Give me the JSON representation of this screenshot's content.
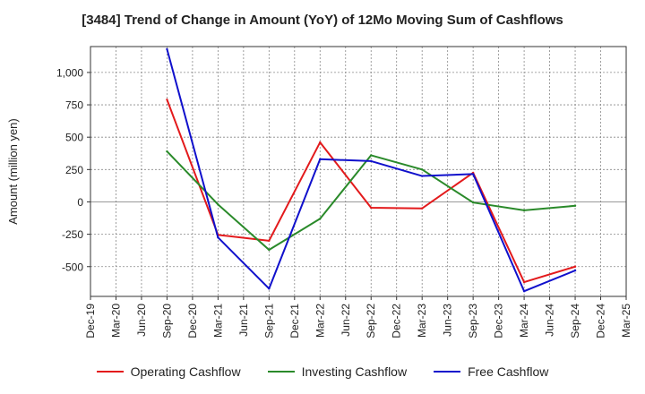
{
  "chart_data": {
    "type": "line",
    "title": "[3484]  Trend of Change in Amount (YoY) of 12Mo Moving Sum of Cashflows",
    "xlabel": "",
    "ylabel": "Amount (million yen)",
    "ylim": [
      -730,
      1200
    ],
    "yticks": [
      -500,
      -250,
      0,
      250,
      500,
      750,
      1000
    ],
    "ytick_labels": [
      "-500",
      "-250",
      "0",
      "250",
      "500",
      "750",
      "1,000"
    ],
    "categories": [
      "Dec-19",
      "Mar-20",
      "Jun-20",
      "Sep-20",
      "Dec-20",
      "Mar-21",
      "Jun-21",
      "Sep-21",
      "Dec-21",
      "Mar-22",
      "Jun-22",
      "Sep-22",
      "Dec-22",
      "Mar-23",
      "Jun-23",
      "Sep-23",
      "Dec-23",
      "Mar-24",
      "Jun-24",
      "Sep-24",
      "Dec-24",
      "Mar-25"
    ],
    "legend_position": "bottom",
    "series": [
      {
        "name": "Operating Cashflow",
        "color": "#e31a1c",
        "values": [
          null,
          null,
          null,
          790,
          null,
          -255,
          null,
          -300,
          null,
          460,
          null,
          -45,
          null,
          -50,
          null,
          225,
          null,
          -620,
          null,
          -500,
          null,
          null
        ]
      },
      {
        "name": "Investing Cashflow",
        "color": "#2a8a2a",
        "values": [
          null,
          null,
          null,
          390,
          null,
          -20,
          null,
          -370,
          null,
          -130,
          null,
          360,
          null,
          250,
          null,
          -5,
          null,
          -65,
          null,
          -30,
          null,
          null
        ]
      },
      {
        "name": "Free Cashflow",
        "color": "#1010cc",
        "values": [
          null,
          null,
          null,
          1180,
          null,
          -275,
          null,
          -670,
          null,
          330,
          null,
          315,
          null,
          200,
          null,
          215,
          null,
          -690,
          null,
          -530,
          null,
          null
        ]
      }
    ]
  }
}
